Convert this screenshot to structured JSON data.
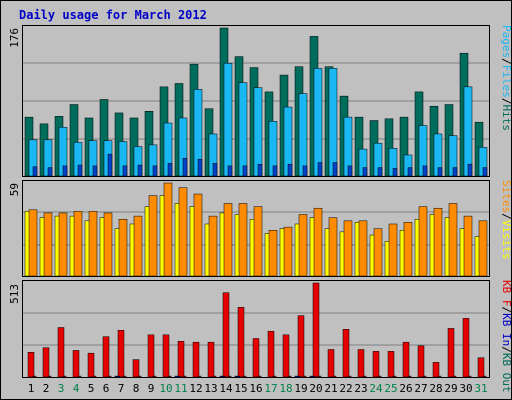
{
  "title": "Daily usage for March 2012",
  "colors": {
    "hits": "#006c5c",
    "files": "#1ab8f2",
    "pages": "#0044cc",
    "visits": "#ffff00",
    "sites": "#ff8c00",
    "kbin": "#0000cc",
    "kbout": "#e60000",
    "weekend_label": "#00804c",
    "weekday_label": "#000000"
  },
  "chart_data": [
    {
      "type": "bar",
      "categories": [
        "1",
        "2",
        "3",
        "4",
        "5",
        "6",
        "7",
        "8",
        "9",
        "10",
        "11",
        "12",
        "13",
        "14",
        "15",
        "16",
        "17",
        "18",
        "19",
        "20",
        "21",
        "22",
        "23",
        "24",
        "25",
        "26",
        "27",
        "28",
        "29",
        "30",
        "31"
      ],
      "weekend_days": [
        "3",
        "4",
        "10",
        "11",
        "17",
        "18",
        "24",
        "25",
        "31"
      ],
      "ymax_label": "176",
      "ylabel_parts": [
        "Pages",
        "/",
        "Files",
        "/",
        "Hits"
      ],
      "series": [
        {
          "name": "Hits",
          "values": [
            70,
            62,
            71,
            85,
            69,
            91,
            75,
            69,
            77,
            106,
            110,
            133,
            80,
            176,
            142,
            129,
            100,
            120,
            130,
            166,
            130,
            95,
            70,
            66,
            68,
            70,
            100,
            83,
            85,
            146,
            64
          ]
        },
        {
          "name": "Files",
          "values": [
            43,
            43,
            58,
            40,
            42,
            42,
            41,
            35,
            37,
            63,
            69,
            103,
            50,
            134,
            111,
            105,
            65,
            82,
            98,
            128,
            128,
            70,
            32,
            39,
            33,
            25,
            60,
            50,
            48,
            106,
            34
          ]
        },
        {
          "name": "Pages",
          "values": [
            11,
            10,
            12,
            13,
            12,
            26,
            12,
            13,
            12,
            15,
            21,
            20,
            15,
            12,
            12,
            14,
            12,
            14,
            12,
            16,
            16,
            12,
            10,
            10,
            9,
            10,
            12,
            10,
            10,
            14,
            10
          ]
        }
      ]
    },
    {
      "type": "bar",
      "categories": [
        "1",
        "2",
        "3",
        "4",
        "5",
        "6",
        "7",
        "8",
        "9",
        "10",
        "11",
        "12",
        "13",
        "14",
        "15",
        "16",
        "17",
        "18",
        "19",
        "20",
        "21",
        "22",
        "23",
        "24",
        "25",
        "26",
        "27",
        "28",
        "29",
        "30",
        "31"
      ],
      "ymax_label": "59",
      "ylabel_parts": [
        "Sites",
        "/",
        "Visits"
      ],
      "series": [
        {
          "name": "Visits",
          "values": [
            41,
            37,
            38,
            38,
            35,
            37,
            30,
            33,
            44,
            51,
            46,
            44,
            33,
            40,
            39,
            36,
            27,
            30,
            33,
            37,
            30,
            28,
            34,
            26,
            22,
            29,
            36,
            39,
            37,
            30,
            25
          ]
        },
        {
          "name": "Sites",
          "values": [
            42,
            40,
            40,
            41,
            41,
            40,
            36,
            38,
            51,
            59,
            56,
            52,
            38,
            46,
            46,
            44,
            29,
            31,
            39,
            43,
            37,
            35,
            35,
            30,
            33,
            34,
            44,
            43,
            46,
            38,
            35
          ]
        }
      ]
    },
    {
      "type": "bar",
      "categories": [
        "1",
        "2",
        "3",
        "4",
        "5",
        "6",
        "7",
        "8",
        "9",
        "10",
        "11",
        "12",
        "13",
        "14",
        "15",
        "16",
        "17",
        "18",
        "19",
        "20",
        "21",
        "22",
        "23",
        "24",
        "25",
        "26",
        "27",
        "28",
        "29",
        "30",
        "31"
      ],
      "ymax_label": "513",
      "ylabel_parts": [
        "KB F",
        "/",
        "KB In",
        "/",
        "KB Out"
      ],
      "series": [
        {
          "name": "KB Out",
          "values": [
            135,
            160,
            270,
            145,
            130,
            220,
            255,
            95,
            230,
            230,
            195,
            190,
            190,
            460,
            380,
            210,
            250,
            230,
            335,
            513,
            150,
            260,
            150,
            140,
            140,
            190,
            170,
            80,
            265,
            320,
            105
          ]
        },
        {
          "name": "KB In",
          "values": [
            0,
            0,
            0,
            0,
            0,
            0,
            5,
            0,
            0,
            0,
            5,
            0,
            0,
            5,
            5,
            0,
            0,
            0,
            5,
            5,
            0,
            0,
            0,
            0,
            0,
            0,
            0,
            0,
            0,
            0,
            0
          ]
        },
        {
          "name": "KB F",
          "values": [
            5,
            5,
            5,
            5,
            5,
            5,
            5,
            5,
            5,
            5,
            5,
            5,
            5,
            5,
            5,
            5,
            5,
            5,
            5,
            5,
            5,
            5,
            5,
            5,
            5,
            5,
            5,
            5,
            5,
            5,
            5
          ]
        }
      ]
    }
  ]
}
